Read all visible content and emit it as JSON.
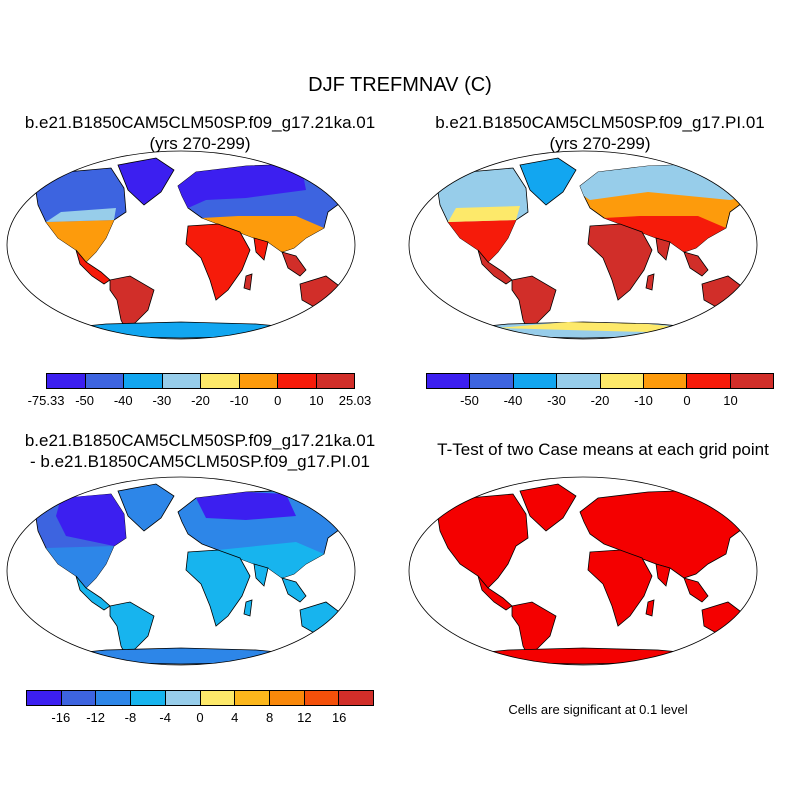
{
  "title": "DJF TREFMNAV (C)",
  "panels": [
    {
      "title_line1": "b.e21.B1850CAM5CLM50SP.f09_g17.21ka.01",
      "title_line2": "(yrs 270-299)"
    },
    {
      "title_line1": "b.e21.B1850CAM5CLM50SP.f09_g17.PI.01",
      "title_line2": "(yrs 270-299)"
    },
    {
      "title_line1": "b.e21.B1850CAM5CLM50SP.f09_g17.21ka.01",
      "title_line2": "- b.e21.B1850CAM5CLM50SP.f09_g17.PI.01"
    },
    {
      "title_line1": "T-Test of two Case means at each grid point"
    }
  ],
  "colorbars": [
    {
      "colors": [
        "#3c1ff0",
        "#3d64e0",
        "#12a6f0",
        "#97cdea",
        "#fde96a",
        "#fd9b0c",
        "#f61b0a",
        "#d12e29"
      ],
      "labels": [
        "-75.33",
        "-50",
        "-40",
        "-30",
        "-20",
        "-10",
        "0",
        "10",
        "25.03"
      ]
    },
    {
      "colors": [
        "#3c1ff0",
        "#3d64e0",
        "#12a6f0",
        "#97cdea",
        "#fde96a",
        "#fd9b0c",
        "#f61b0a",
        "#d12e29"
      ],
      "labels": [
        "-50",
        "-40",
        "-30",
        "-20",
        "-10",
        "0",
        "10"
      ]
    },
    {
      "colors": [
        "#3c1ff0",
        "#3d64e0",
        "#2d86e8",
        "#17b4ee",
        "#97cdea",
        "#fde96a",
        "#fcb71c",
        "#f9880a",
        "#f4500a",
        "#d12e29"
      ],
      "labels": [
        "-16",
        "-12",
        "-8",
        "-4",
        "0",
        "4",
        "8",
        "12",
        "16"
      ]
    }
  ],
  "significance_note": "Cells are significant at 0.1 level",
  "palette": {
    "ocean": "#ffffff",
    "ttest": "#f40000",
    "coastline": "#000000"
  }
}
